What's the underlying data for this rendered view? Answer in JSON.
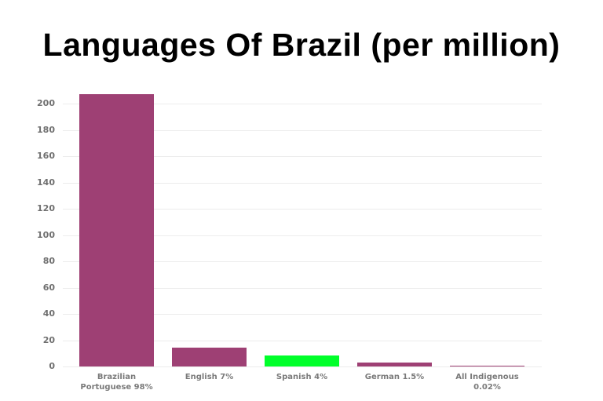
{
  "chart_data": {
    "type": "bar",
    "title": "Languages Of Brazil (per million)",
    "xlabel": "",
    "ylabel": "",
    "categories": [
      "Brazilian Portuguese 98%",
      "English 7%",
      "Spanish 4%",
      "German 1.5%",
      "All Indigenous 0.02%"
    ],
    "category_lines": [
      [
        "Brazilian",
        "Portuguese 98%"
      ],
      [
        "English 7%"
      ],
      [
        "Spanish 4%"
      ],
      [
        "German 1.5%"
      ],
      [
        "All Indigenous",
        "0.02%"
      ]
    ],
    "values": [
      207,
      14.5,
      8.5,
      3,
      0.5
    ],
    "colors": [
      "#9e4074",
      "#9e4074",
      "#00ff2a",
      "#9e4074",
      "#9e4074"
    ],
    "ylim": [
      0,
      200
    ],
    "yticks": [
      0,
      20,
      40,
      60,
      80,
      100,
      120,
      140,
      160,
      180,
      200
    ],
    "grid": true,
    "legend": null
  }
}
